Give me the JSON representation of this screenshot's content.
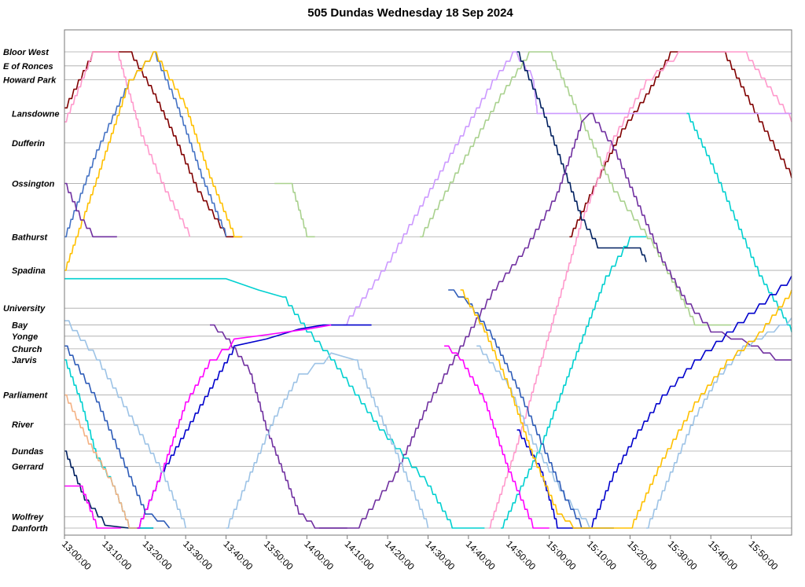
{
  "chart_data": {
    "type": "line",
    "title": "505 Dundas Wednesday 18 Sep 2024",
    "xlabel": "",
    "ylabel": "",
    "x_range": [
      "13:00:00",
      "15:59:00"
    ],
    "grid": true,
    "stops": [
      {
        "name": "Bloor West",
        "y": 0
      },
      {
        "name": "E of Ronces",
        "y": 1.0
      },
      {
        "name": "Howard Park",
        "y": 2.0
      },
      {
        "name": "Lansdowne",
        "y": 4.4
      },
      {
        "name": "Dufferin",
        "y": 6.5
      },
      {
        "name": "Ossington",
        "y": 9.4
      },
      {
        "name": "Bathurst",
        "y": 13.2
      },
      {
        "name": "Spadina",
        "y": 15.6
      },
      {
        "name": "University",
        "y": 18.3
      },
      {
        "name": "Bay",
        "y": 19.5
      },
      {
        "name": "Yonge",
        "y": 20.3
      },
      {
        "name": "Church",
        "y": 21.2
      },
      {
        "name": "Jarvis",
        "y": 22.0
      },
      {
        "name": "Parliament",
        "y": 24.5
      },
      {
        "name": "River",
        "y": 26.6
      },
      {
        "name": "Dundas",
        "y": 28.5
      },
      {
        "name": "Gerrard",
        "y": 29.6
      },
      {
        "name": "Wolfrey",
        "y": 33.2
      },
      {
        "name": "Danforth",
        "y": 34.0
      }
    ],
    "x_ticks": [
      "13:00:00",
      "13:10:00",
      "13:20:00",
      "13:30:00",
      "13:40:00",
      "13:50:00",
      "14:00:00",
      "14:10:00",
      "14:20:00",
      "14:30:00",
      "14:40:00",
      "14:50:00",
      "15:00:00",
      "15:10:00",
      "15:20:00",
      "15:30:00",
      "15:40:00",
      "15:50:00"
    ],
    "series": [
      {
        "color": "#800000",
        "points": [
          [
            0,
            4
          ],
          [
            7,
            0
          ],
          [
            16,
            0
          ],
          [
            22,
            3
          ],
          [
            27,
            6
          ],
          [
            33,
            10
          ],
          [
            40,
            13.2
          ],
          [
            44,
            13.2
          ]
        ]
      },
      {
        "color": "#800000",
        "points": [
          [
            125,
            13.2
          ],
          [
            132,
            9
          ],
          [
            138,
            5.5
          ],
          [
            144,
            3
          ],
          [
            150,
            0
          ],
          [
            163,
            0
          ],
          [
            172,
            5
          ],
          [
            180,
            9
          ]
        ]
      },
      {
        "color": "#ff99cc",
        "points": [
          [
            0,
            5
          ],
          [
            7,
            0
          ],
          [
            13,
            0
          ],
          [
            19,
            6
          ],
          [
            25,
            10
          ],
          [
            31,
            13.2
          ]
        ]
      },
      {
        "color": "#ff99cc",
        "points": [
          [
            105,
            34
          ],
          [
            112,
            28
          ],
          [
            120,
            20
          ],
          [
            128,
            12
          ],
          [
            136,
            6
          ],
          [
            144,
            2
          ],
          [
            152,
            0
          ],
          [
            168,
            0
          ],
          [
            180,
            5
          ]
        ]
      },
      {
        "color": "#4472c4",
        "points": [
          [
            0,
            13.2
          ],
          [
            8,
            7
          ],
          [
            16,
            2
          ],
          [
            22,
            0
          ],
          [
            28,
            4
          ],
          [
            34,
            9
          ],
          [
            40,
            13.2
          ]
        ]
      },
      {
        "color": "#ffc000",
        "points": [
          [
            0,
            15.6
          ],
          [
            8,
            9
          ],
          [
            16,
            2
          ],
          [
            22,
            0
          ],
          [
            30,
            4
          ],
          [
            36,
            9
          ],
          [
            42,
            13.2
          ],
          [
            44,
            13.2
          ]
        ]
      },
      {
        "color": "#a9d18e",
        "points": [
          [
            52,
            9.4
          ],
          [
            56,
            9.4
          ],
          [
            60,
            13.2
          ],
          [
            62,
            13.2
          ]
        ]
      },
      {
        "color": "#a9d18e",
        "points": [
          [
            88,
            13.2
          ],
          [
            98,
            8
          ],
          [
            108,
            3
          ],
          [
            115,
            0
          ],
          [
            120,
            0
          ],
          [
            128,
            5
          ],
          [
            136,
            10
          ],
          [
            146,
            14
          ],
          [
            156,
            19.5
          ],
          [
            165,
            19.5
          ]
        ]
      },
      {
        "color": "#cc99ff",
        "points": [
          [
            69,
            19.5
          ],
          [
            80,
            15
          ],
          [
            88,
            11
          ],
          [
            98,
            6
          ],
          [
            106,
            2
          ],
          [
            111,
            0
          ],
          [
            116,
            2
          ],
          [
            117,
            4.4
          ],
          [
            180,
            4.4
          ]
        ]
      },
      {
        "color": "#002060",
        "points": [
          [
            112,
            0
          ],
          [
            118,
            4
          ],
          [
            123,
            8
          ],
          [
            128,
            12
          ],
          [
            132,
            14
          ],
          [
            142,
            14
          ],
          [
            144,
            15
          ]
        ]
      },
      {
        "color": "#002060",
        "points": [
          [
            0,
            28.5
          ],
          [
            5,
            32
          ],
          [
            10,
            33.8
          ],
          [
            16,
            34
          ],
          [
            22,
            34
          ]
        ]
      },
      {
        "color": "#7030a0",
        "points": [
          [
            0,
            9.4
          ],
          [
            4,
            12
          ],
          [
            7,
            13.2
          ],
          [
            13,
            13.2
          ]
        ]
      },
      {
        "color": "#7030a0",
        "points": [
          [
            63,
            34
          ],
          [
            72,
            34
          ],
          [
            82,
            30
          ],
          [
            90,
            25
          ],
          [
            98,
            21
          ],
          [
            106,
            17
          ],
          [
            114,
            14
          ],
          [
            122,
            10
          ],
          [
            128,
            5
          ],
          [
            130,
            4.4
          ],
          [
            136,
            7
          ],
          [
            142,
            11
          ],
          [
            148,
            15
          ],
          [
            154,
            18
          ],
          [
            160,
            20
          ],
          [
            170,
            21
          ],
          [
            176,
            22
          ],
          [
            180,
            22
          ]
        ]
      },
      {
        "color": "#7030a0",
        "points": [
          [
            36,
            19.5
          ],
          [
            40,
            20.5
          ],
          [
            46,
            23
          ],
          [
            50,
            27
          ],
          [
            54,
            30
          ],
          [
            58,
            33
          ],
          [
            62,
            34
          ],
          [
            70,
            34
          ]
        ]
      },
      {
        "color": "#00d0d0",
        "points": [
          [
            0,
            16.2
          ],
          [
            40,
            16.2
          ],
          [
            48,
            17
          ],
          [
            54,
            17.5
          ],
          [
            60,
            20
          ],
          [
            66,
            22
          ],
          [
            72,
            24.5
          ],
          [
            78,
            27
          ],
          [
            84,
            29
          ],
          [
            90,
            31
          ],
          [
            96,
            34
          ],
          [
            104,
            34
          ]
        ]
      },
      {
        "color": "#00d0d0",
        "points": [
          [
            0,
            22
          ],
          [
            4,
            25
          ],
          [
            8,
            29
          ],
          [
            12,
            31
          ],
          [
            16,
            34
          ],
          [
            22,
            34
          ]
        ]
      },
      {
        "color": "#00d0d0",
        "points": [
          [
            108,
            34
          ],
          [
            118,
            28
          ],
          [
            126,
            22
          ],
          [
            134,
            16
          ],
          [
            140,
            13.2
          ],
          [
            144,
            13.2
          ]
        ]
      },
      {
        "color": "#00d0d0",
        "points": [
          [
            154,
            4.4
          ],
          [
            160,
            8
          ],
          [
            166,
            12
          ],
          [
            172,
            16
          ],
          [
            178,
            19
          ],
          [
            180,
            20
          ]
        ]
      },
      {
        "color": "#0000cc",
        "points": [
          [
            18,
            34
          ],
          [
            24,
            30
          ],
          [
            30,
            27
          ],
          [
            36,
            24
          ],
          [
            42,
            21
          ],
          [
            50,
            20.5
          ],
          [
            58,
            19.8
          ],
          [
            64,
            19.5
          ],
          [
            76,
            19.5
          ]
        ]
      },
      {
        "color": "#0000cc",
        "points": [
          [
            112,
            27
          ],
          [
            118,
            30
          ],
          [
            122,
            34
          ],
          [
            130,
            34
          ],
          [
            136,
            30
          ],
          [
            142,
            27
          ],
          [
            148,
            24.5
          ],
          [
            156,
            22
          ],
          [
            164,
            20
          ],
          [
            172,
            18
          ],
          [
            180,
            16
          ]
        ]
      },
      {
        "color": "#ff00ff",
        "points": [
          [
            0,
            31
          ],
          [
            4,
            31
          ],
          [
            8,
            34
          ],
          [
            14,
            34
          ]
        ]
      },
      {
        "color": "#ff00ff",
        "points": [
          [
            18,
            34
          ],
          [
            24,
            30
          ],
          [
            30,
            25
          ],
          [
            36,
            22
          ],
          [
            42,
            20.5
          ],
          [
            50,
            20.2
          ],
          [
            60,
            19.8
          ],
          [
            66,
            19.5
          ]
        ]
      },
      {
        "color": "#ff00ff",
        "points": [
          [
            94,
            21
          ],
          [
            98,
            22
          ],
          [
            104,
            25
          ],
          [
            110,
            30
          ],
          [
            116,
            34
          ],
          [
            120,
            34
          ]
        ]
      },
      {
        "color": "#9dc3e6",
        "points": [
          [
            0,
            19.2
          ],
          [
            8,
            22
          ],
          [
            16,
            26
          ],
          [
            24,
            30
          ],
          [
            30,
            34
          ]
        ]
      },
      {
        "color": "#9dc3e6",
        "points": [
          [
            40,
            34
          ],
          [
            46,
            30
          ],
          [
            52,
            26
          ],
          [
            58,
            23
          ],
          [
            66,
            21.5
          ],
          [
            72,
            22
          ],
          [
            78,
            26
          ],
          [
            84,
            30
          ],
          [
            90,
            34
          ]
        ]
      },
      {
        "color": "#9dc3e6",
        "points": [
          [
            102,
            21
          ],
          [
            110,
            24
          ],
          [
            116,
            28
          ],
          [
            124,
            32
          ],
          [
            130,
            34
          ],
          [
            136,
            34
          ]
        ]
      },
      {
        "color": "#9dc3e6",
        "points": [
          [
            144,
            34
          ],
          [
            150,
            30
          ],
          [
            156,
            26
          ],
          [
            162,
            23
          ],
          [
            168,
            21
          ],
          [
            174,
            20
          ],
          [
            180,
            19
          ]
        ]
      },
      {
        "color": "#2e5cb8",
        "points": [
          [
            95,
            17
          ],
          [
            100,
            18
          ],
          [
            106,
            20.5
          ],
          [
            112,
            24
          ],
          [
            118,
            28
          ],
          [
            124,
            32
          ],
          [
            128,
            34
          ],
          [
            136,
            34
          ]
        ]
      },
      {
        "color": "#2e5cb8",
        "points": [
          [
            0,
            21
          ],
          [
            8,
            25
          ],
          [
            14,
            29
          ],
          [
            20,
            33
          ],
          [
            26,
            34
          ]
        ]
      },
      {
        "color": "#ffc000",
        "points": [
          [
            98,
            17
          ],
          [
            104,
            20
          ],
          [
            110,
            24
          ],
          [
            116,
            29
          ],
          [
            122,
            33
          ],
          [
            126,
            34
          ],
          [
            140,
            34
          ],
          [
            148,
            29
          ],
          [
            156,
            25
          ],
          [
            164,
            22
          ],
          [
            172,
            20
          ],
          [
            180,
            17
          ]
        ]
      },
      {
        "color": "#f4b183",
        "points": [
          [
            0,
            24.5
          ],
          [
            6,
            28
          ],
          [
            12,
            31
          ],
          [
            16,
            34
          ],
          [
            18,
            34
          ]
        ]
      }
    ]
  }
}
